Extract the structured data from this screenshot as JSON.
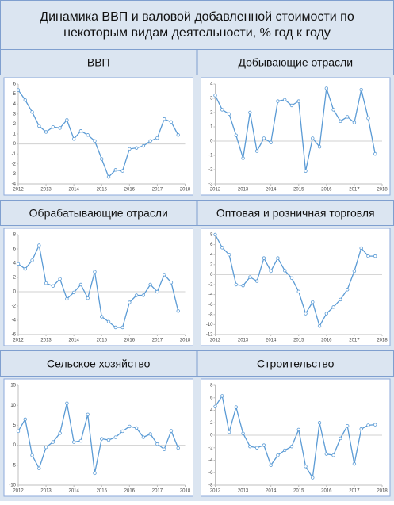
{
  "title": "Динамика ВВП и валовой добавленной стоимости по некоторым видам деятельности, % год к году",
  "chart_data": [
    {
      "type": "line",
      "title": "ВВП",
      "color": "#5b9bd5",
      "grid": false,
      "x": [
        2012,
        2012.25,
        2012.5,
        2012.75,
        2013,
        2013.25,
        2013.5,
        2013.75,
        2014,
        2014.25,
        2014.5,
        2014.75,
        2015,
        2015.25,
        2015.5,
        2015.75,
        2016,
        2016.25,
        2016.5,
        2016.75,
        2017,
        2017.25,
        2017.5,
        2017.75
      ],
      "values": [
        5.4,
        4.4,
        3.2,
        1.8,
        1.2,
        1.7,
        1.6,
        2.4,
        0.5,
        1.3,
        0.9,
        0.3,
        -1.5,
        -3.3,
        -2.6,
        -2.7,
        -0.5,
        -0.4,
        -0.2,
        0.3,
        0.6,
        2.5,
        2.2,
        0.9
      ],
      "xlim": [
        2012,
        2018
      ],
      "xticks": [
        2012,
        2013,
        2014,
        2015,
        2016,
        2017,
        2018
      ],
      "ylim": [
        -4,
        6
      ],
      "yticks": [
        -4,
        -3,
        -2,
        -1,
        0,
        1,
        2,
        3,
        4,
        5,
        6
      ]
    },
    {
      "type": "line",
      "title": "Добывающие отрасли",
      "color": "#5b9bd5",
      "grid": false,
      "x": [
        2012,
        2012.25,
        2012.5,
        2012.75,
        2013,
        2013.25,
        2013.5,
        2013.75,
        2014,
        2014.25,
        2014.5,
        2014.75,
        2015,
        2015.25,
        2015.5,
        2015.75,
        2016,
        2016.25,
        2016.5,
        2016.75,
        2017,
        2017.25,
        2017.5,
        2017.75
      ],
      "values": [
        3.2,
        2.2,
        1.9,
        0.4,
        -1.2,
        2.0,
        -0.7,
        0.2,
        -0.1,
        2.8,
        2.9,
        2.5,
        2.8,
        -2.1,
        0.2,
        -0.4,
        3.7,
        2.2,
        1.4,
        1.7,
        1.3,
        3.6,
        1.6,
        -0.9
      ],
      "xlim": [
        2012,
        2018
      ],
      "xticks": [
        2012,
        2013,
        2014,
        2015,
        2016,
        2017,
        2018
      ],
      "ylim": [
        -3,
        4
      ],
      "yticks": [
        -3,
        -2,
        -1,
        0,
        1,
        2,
        3,
        4
      ]
    },
    {
      "type": "line",
      "title": "Обрабатывающие отрасли",
      "color": "#5b9bd5",
      "grid": false,
      "x": [
        2012,
        2012.25,
        2012.5,
        2012.75,
        2013,
        2013.25,
        2013.5,
        2013.75,
        2014,
        2014.25,
        2014.5,
        2014.75,
        2015,
        2015.25,
        2015.5,
        2015.75,
        2016,
        2016.25,
        2016.5,
        2016.75,
        2017,
        2017.25,
        2017.5,
        2017.75
      ],
      "values": [
        3.9,
        3.2,
        4.4,
        6.5,
        1.2,
        0.8,
        1.8,
        -1.0,
        -0.1,
        1.0,
        -0.9,
        2.8,
        -3.5,
        -4.2,
        -5.0,
        -5.0,
        -1.5,
        -0.5,
        -0.5,
        1.0,
        0.0,
        2.4,
        1.3,
        -2.7
      ],
      "xlim": [
        2012,
        2018
      ],
      "xticks": [
        2012,
        2013,
        2014,
        2015,
        2016,
        2017,
        2018
      ],
      "ylim": [
        -6,
        8
      ],
      "yticks": [
        -6,
        -4,
        -2,
        0,
        2,
        4,
        6,
        8
      ]
    },
    {
      "type": "line",
      "title": "Оптовая и розничная торговля",
      "color": "#5b9bd5",
      "grid": false,
      "x": [
        2012,
        2012.25,
        2012.5,
        2012.75,
        2013,
        2013.25,
        2013.5,
        2013.75,
        2014,
        2014.25,
        2014.5,
        2014.75,
        2015,
        2015.25,
        2015.5,
        2015.75,
        2016,
        2016.25,
        2016.5,
        2016.75,
        2017,
        2017.25,
        2017.5,
        2017.75
      ],
      "values": [
        8.0,
        5.4,
        4.0,
        -2.0,
        -2.2,
        -0.5,
        -1.3,
        3.3,
        0.7,
        3.3,
        0.8,
        -0.7,
        -3.4,
        -7.8,
        -5.5,
        -10.3,
        -7.8,
        -6.5,
        -5.0,
        -3.0,
        0.7,
        5.3,
        3.7,
        3.7
      ],
      "xlim": [
        2012,
        2018
      ],
      "xticks": [
        2012,
        2013,
        2014,
        2015,
        2016,
        2017,
        2018
      ],
      "ylim": [
        -12,
        8
      ],
      "yticks": [
        -12,
        -10,
        -8,
        -6,
        -4,
        -2,
        0,
        2,
        4,
        6,
        8
      ]
    },
    {
      "type": "line",
      "title": "Сельское хозяйство",
      "color": "#5b9bd5",
      "grid": false,
      "x": [
        2012,
        2012.25,
        2012.5,
        2012.75,
        2013,
        2013.25,
        2013.5,
        2013.75,
        2014,
        2014.25,
        2014.5,
        2014.75,
        2015,
        2015.25,
        2015.5,
        2015.75,
        2016,
        2016.25,
        2016.5,
        2016.75,
        2017,
        2017.25,
        2017.5,
        2017.75
      ],
      "values": [
        3.5,
        6.5,
        -2.5,
        -5.8,
        -0.5,
        0.8,
        3.0,
        10.5,
        0.8,
        1.1,
        7.7,
        -7.0,
        1.6,
        1.3,
        2.0,
        3.5,
        4.7,
        4.3,
        2.0,
        2.8,
        0.3,
        -1.0,
        3.6,
        -0.7
      ],
      "xlim": [
        2012,
        2018
      ],
      "xticks": [
        2012,
        2013,
        2014,
        2015,
        2016,
        2017,
        2018
      ],
      "ylim": [
        -10,
        15
      ],
      "yticks": [
        -10,
        -5,
        0,
        5,
        10,
        15
      ]
    },
    {
      "type": "line",
      "title": "Строительство",
      "color": "#5b9bd5",
      "grid": false,
      "x": [
        2012,
        2012.25,
        2012.5,
        2012.75,
        2013,
        2013.25,
        2013.5,
        2013.75,
        2014,
        2014.25,
        2014.5,
        2014.75,
        2015,
        2015.25,
        2015.5,
        2015.75,
        2016,
        2016.25,
        2016.5,
        2016.75,
        2017,
        2017.25,
        2017.5,
        2017.75
      ],
      "values": [
        4.6,
        6.3,
        0.5,
        4.5,
        0.3,
        -1.8,
        -2.0,
        -1.6,
        -4.8,
        -3.2,
        -2.4,
        -1.8,
        0.9,
        -5.0,
        -6.8,
        2.0,
        -3.0,
        -3.2,
        -0.5,
        1.5,
        -4.6,
        1.0,
        1.6,
        1.7
      ],
      "xlim": [
        2012,
        2018
      ],
      "xticks": [
        2012,
        2013,
        2014,
        2015,
        2016,
        2017,
        2018
      ],
      "ylim": [
        -8,
        8
      ],
      "yticks": [
        -8,
        -6,
        -4,
        -2,
        0,
        2,
        4,
        6,
        8
      ]
    }
  ]
}
